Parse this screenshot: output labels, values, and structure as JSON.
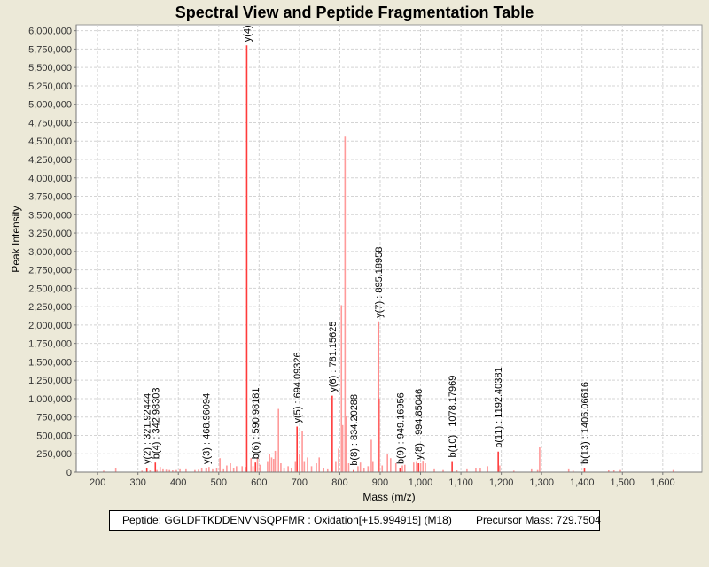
{
  "chart_data": {
    "type": "bar",
    "title": "Spectral View and Peptide Fragmentation Table",
    "xlabel": "Mass (m/z)",
    "ylabel": "Peak Intensity",
    "xlim": [
      147,
      1697
    ],
    "ylim": [
      0,
      6080000
    ],
    "x_ticks": [
      200,
      300,
      400,
      500,
      600,
      700,
      800,
      900,
      1000,
      1100,
      1200,
      1300,
      1400,
      1500,
      1600
    ],
    "x_tick_labels": [
      "200",
      "300",
      "400",
      "500",
      "600",
      "700",
      "800",
      "900",
      "1,000",
      "1,100",
      "1,200",
      "1,300",
      "1,400",
      "1,500",
      "1,600"
    ],
    "y_ticks": [
      0,
      250000,
      500000,
      750000,
      1000000,
      1250000,
      1500000,
      1750000,
      2000000,
      2250000,
      2500000,
      2750000,
      3000000,
      3250000,
      3500000,
      3750000,
      4000000,
      4250000,
      4500000,
      4750000,
      5000000,
      5250000,
      5500000,
      5750000,
      6000000
    ],
    "y_tick_labels": [
      "0",
      "250,000",
      "500,000",
      "750,000",
      "1,000,000",
      "1,250,000",
      "1,500,000",
      "1,750,000",
      "2,000,000",
      "2,250,000",
      "2,500,000",
      "2,750,000",
      "3,000,000",
      "3,250,000",
      "3,500,000",
      "3,750,000",
      "4,000,000",
      "4,250,000",
      "4,500,000",
      "4,750,000",
      "5,000,000",
      "5,250,000",
      "5,500,000",
      "5,750,000",
      "6,000,000"
    ],
    "grid": true,
    "colors": {
      "annotated": "#ff3b3b",
      "unannotated": "#ff9a9a"
    },
    "annotated_peaks": [
      {
        "label": "y(2) : 321.92444",
        "mz": 321.92,
        "intensity": 60000
      },
      {
        "label": "b(4) : 342.98303",
        "mz": 342.98,
        "intensity": 130000
      },
      {
        "label": "y(3) : 468.96094",
        "mz": 468.96,
        "intensity": 60000
      },
      {
        "label": "y(4) :",
        "mz": 569.5,
        "intensity": 5800000
      },
      {
        "label": "b(6) : 590.98181",
        "mz": 590.98,
        "intensity": 130000
      },
      {
        "label": "y(5) : 694.09326",
        "mz": 694.09,
        "intensity": 620000
      },
      {
        "label": "y(6) : 781.15625",
        "mz": 781.16,
        "intensity": 1040000
      },
      {
        "label": "b(8) : 834.20288",
        "mz": 834.2,
        "intensity": 40000
      },
      {
        "label": "y(7) : 895.18958",
        "mz": 895.19,
        "intensity": 2050000
      },
      {
        "label": "b(9) : 949.16956",
        "mz": 949.17,
        "intensity": 60000
      },
      {
        "label": "y(8) : 994.85046",
        "mz": 994.85,
        "intensity": 120000
      },
      {
        "label": "b(10) : 1078.17969",
        "mz": 1078.18,
        "intensity": 150000
      },
      {
        "label": "b(11) : 1192.40381",
        "mz": 1192.4,
        "intensity": 280000
      },
      {
        "label": "b(13) : 1406.06616",
        "mz": 1406.07,
        "intensity": 60000
      }
    ],
    "peaks": [
      [
        215,
        20000
      ],
      [
        245,
        60000
      ],
      [
        310,
        20000
      ],
      [
        330,
        30000
      ],
      [
        347,
        40000
      ],
      [
        355,
        70000
      ],
      [
        362,
        50000
      ],
      [
        370,
        45000
      ],
      [
        378,
        40000
      ],
      [
        386,
        30000
      ],
      [
        395,
        40000
      ],
      [
        404,
        50000
      ],
      [
        419,
        50000
      ],
      [
        441,
        40000
      ],
      [
        450,
        45000
      ],
      [
        458,
        60000
      ],
      [
        476,
        70000
      ],
      [
        485,
        50000
      ],
      [
        495,
        60000
      ],
      [
        503,
        190000
      ],
      [
        512,
        50000
      ],
      [
        520,
        90000
      ],
      [
        529,
        120000
      ],
      [
        537,
        60000
      ],
      [
        544,
        80000
      ],
      [
        558,
        80000
      ],
      [
        566,
        70000
      ],
      [
        580,
        190000
      ],
      [
        585,
        80000
      ],
      [
        596,
        190000
      ],
      [
        602,
        100000
      ],
      [
        621,
        150000
      ],
      [
        626,
        250000
      ],
      [
        631,
        200000
      ],
      [
        636,
        180000
      ],
      [
        640,
        290000
      ],
      [
        648,
        860000
      ],
      [
        654,
        120000
      ],
      [
        662,
        60000
      ],
      [
        672,
        80000
      ],
      [
        680,
        60000
      ],
      [
        690,
        150000
      ],
      [
        700,
        250000
      ],
      [
        707,
        555000
      ],
      [
        712,
        150000
      ],
      [
        720,
        200000
      ],
      [
        730,
        80000
      ],
      [
        742,
        120000
      ],
      [
        749,
        200000
      ],
      [
        760,
        60000
      ],
      [
        770,
        50000
      ],
      [
        790,
        150000
      ],
      [
        797,
        320000
      ],
      [
        804,
        2270000
      ],
      [
        807,
        640000
      ],
      [
        813,
        4560000
      ],
      [
        816,
        760000
      ],
      [
        822,
        120000
      ],
      [
        845,
        80000
      ],
      [
        851,
        130000
      ],
      [
        860,
        60000
      ],
      [
        870,
        80000
      ],
      [
        878,
        440000
      ],
      [
        882,
        150000
      ],
      [
        898,
        1000000
      ],
      [
        905,
        90000
      ],
      [
        918,
        240000
      ],
      [
        926,
        190000
      ],
      [
        939,
        120000
      ],
      [
        955,
        90000
      ],
      [
        961,
        100000
      ],
      [
        983,
        130000
      ],
      [
        990,
        150000
      ],
      [
        1000,
        120000
      ],
      [
        1006,
        155000
      ],
      [
        1012,
        120000
      ],
      [
        1034,
        50000
      ],
      [
        1056,
        40000
      ],
      [
        1090,
        30000
      ],
      [
        1115,
        50000
      ],
      [
        1137,
        60000
      ],
      [
        1148,
        60000
      ],
      [
        1166,
        80000
      ],
      [
        1196,
        90000
      ],
      [
        1231,
        20000
      ],
      [
        1275,
        50000
      ],
      [
        1290,
        40000
      ],
      [
        1295,
        340000
      ],
      [
        1367,
        50000
      ],
      [
        1378,
        20000
      ],
      [
        1466,
        30000
      ],
      [
        1479,
        30000
      ],
      [
        1495,
        40000
      ],
      [
        1626,
        40000
      ]
    ]
  },
  "footer": {
    "peptide": "Peptide: GGLDFTKDDENVNSQPFMR : Oxidation[+15.994915] (M18)",
    "precursor": "Precursor Mass: 729.7504"
  }
}
